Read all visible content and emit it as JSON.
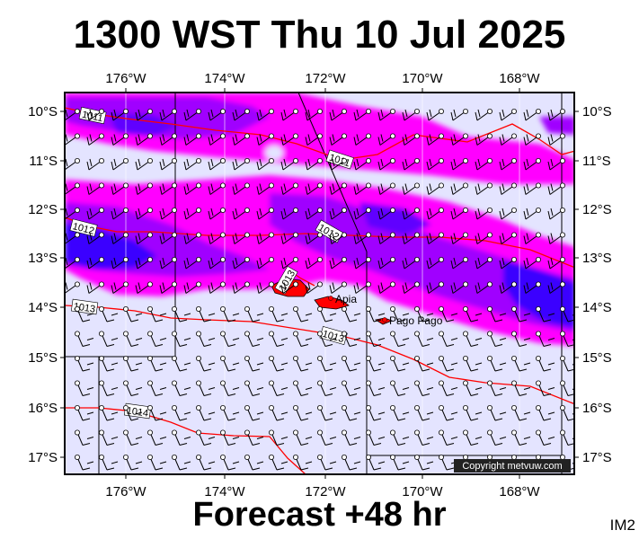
{
  "title": "1300 WST Thu 10 Jul 2025",
  "footer": "Forecast +48 hr",
  "product_code": "IM2",
  "copyright": "Copyright metvuw.com",
  "lon_labels": [
    "176°W",
    "174°W",
    "172°W",
    "170°W",
    "168°W"
  ],
  "lat_labels": [
    "10°S",
    "11°S",
    "12°S",
    "13°S",
    "14°S",
    "15°S",
    "16°S",
    "17°S"
  ],
  "pressure_labels": [
    "1011",
    "1011",
    "1012",
    "1012",
    "1013",
    "1013",
    "1013",
    "1014"
  ],
  "places": [
    {
      "name": "Apia"
    },
    {
      "name": "Pago Pago"
    }
  ],
  "colors": {
    "background": "#e4e4ff",
    "rain_magenta": "#ff00ff",
    "rain_purple": "#a000ff",
    "rain_blue": "#3a00ff",
    "isobar": "#ff0000",
    "land": "#ff0000"
  }
}
